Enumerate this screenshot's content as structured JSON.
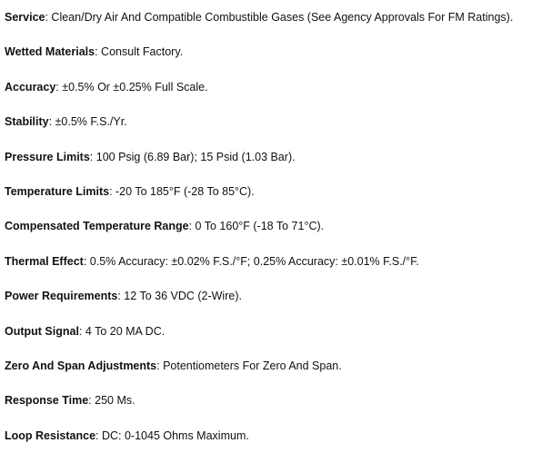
{
  "specs": [
    {
      "label": "Service",
      "value": ": Clean/Dry Air And Compatible Combustible Gases (See Agency Approvals For FM Ratings)."
    },
    {
      "label": "Wetted Materials",
      "value": ": Consult Factory."
    },
    {
      "label": "Accuracy",
      "value": ": ±0.5% Or ±0.25% Full Scale."
    },
    {
      "label": "Stability",
      "value": ": ±0.5% F.S./Yr."
    },
    {
      "label": "Pressure Limits",
      "value": ": 100 Psig (6.89 Bar); 15 Psid (1.03 Bar)."
    },
    {
      "label": "Temperature Limits",
      "value": ": -20 To 185°F (-28 To 85°C)."
    },
    {
      "label": "Compensated Temperature Range",
      "value": ": 0 To 160°F (-18 To 71°C)."
    },
    {
      "label": "Thermal Effect",
      "value": ": 0.5% Accuracy: ±0.02% F.S./°F; 0.25% Accuracy: ±0.01% F.S./°F."
    },
    {
      "label": "Power Requirements",
      "value": ": 12 To 36 VDC (2-Wire)."
    },
    {
      "label": "Output Signal",
      "value": ": 4 To 20 MA DC."
    },
    {
      "label": "Zero And Span Adjustments",
      "value": ": Potentiometers For Zero And Span."
    },
    {
      "label": "Response Time",
      "value": ": 250 Ms."
    },
    {
      "label": "Loop Resistance",
      "value": ": DC: 0-1045 Ohms Maximum."
    }
  ]
}
